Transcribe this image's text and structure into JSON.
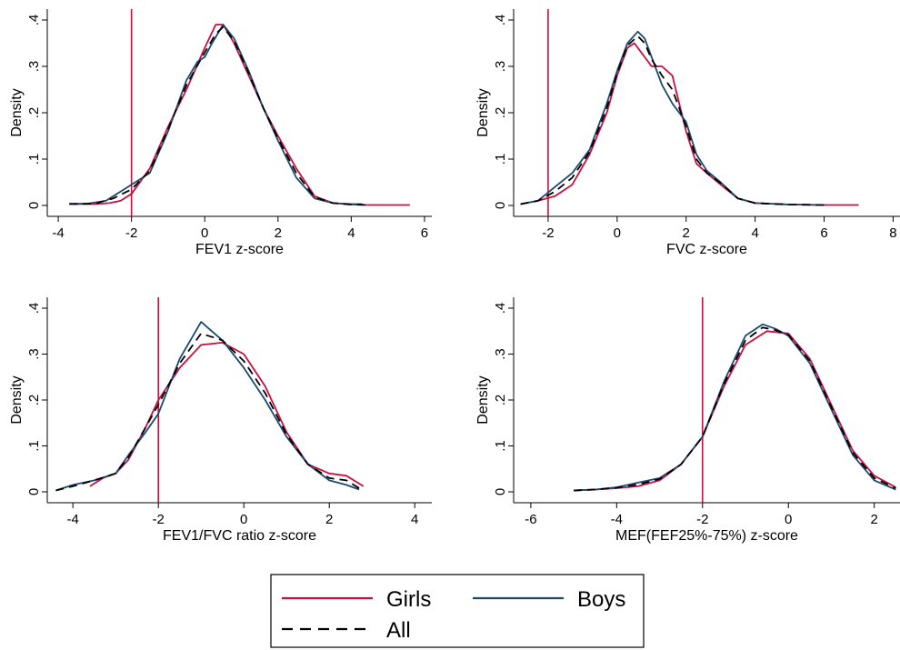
{
  "colors": {
    "girls": "#c8103e",
    "boys": "#1a4a6e",
    "all": "#000000",
    "refline": "#c8103e"
  },
  "legend": {
    "girls_label": "Girls",
    "boys_label": "Boys",
    "all_label": "All"
  },
  "chart_data": [
    {
      "type": "line",
      "xlabel": "FEV1 z-score",
      "ylabel": "Density",
      "xlim": [
        -4.3,
        6.2
      ],
      "ylim": [
        0,
        0.4
      ],
      "xticks": [
        -4,
        -2,
        0,
        2,
        4,
        6
      ],
      "yticks": [
        0,
        0.1,
        0.2,
        0.3,
        0.4
      ],
      "ytick_labels": [
        "0",
        ".1",
        ".2",
        ".3",
        ".4"
      ],
      "refline_x": -2,
      "series": [
        {
          "name": "Girls",
          "x": [
            -3.6,
            -3.0,
            -2.6,
            -2.3,
            -2.0,
            -1.5,
            -1.0,
            -0.5,
            0.0,
            0.3,
            0.5,
            0.8,
            1.2,
            1.6,
            2.0,
            2.5,
            3.0,
            3.5,
            4.0,
            4.5,
            5.0,
            5.6
          ],
          "y": [
            0.003,
            0.003,
            0.005,
            0.01,
            0.025,
            0.08,
            0.17,
            0.25,
            0.34,
            0.39,
            0.39,
            0.35,
            0.28,
            0.21,
            0.15,
            0.08,
            0.02,
            0.005,
            0.002,
            0.001,
            0.001,
            0.001
          ]
        },
        {
          "name": "Boys",
          "x": [
            -3.7,
            -3.2,
            -2.7,
            -2.3,
            -2.0,
            -1.5,
            -1.0,
            -0.5,
            -0.2,
            0.0,
            0.2,
            0.5,
            0.8,
            1.2,
            1.6,
            2.0,
            2.5,
            3.0,
            3.5,
            4.0,
            4.3
          ],
          "y": [
            0.004,
            0.004,
            0.01,
            0.03,
            0.045,
            0.07,
            0.16,
            0.27,
            0.31,
            0.32,
            0.35,
            0.39,
            0.36,
            0.29,
            0.21,
            0.14,
            0.06,
            0.015,
            0.005,
            0.003,
            0.003
          ]
        },
        {
          "name": "All",
          "x": [
            -3.7,
            -3.0,
            -2.5,
            -2.0,
            -1.5,
            -1.0,
            -0.5,
            0.0,
            0.3,
            0.5,
            0.8,
            1.2,
            1.6,
            2.0,
            2.5,
            3.0,
            3.5,
            4.0,
            4.5
          ],
          "y": [
            0.003,
            0.004,
            0.015,
            0.035,
            0.075,
            0.165,
            0.26,
            0.33,
            0.37,
            0.385,
            0.355,
            0.285,
            0.21,
            0.145,
            0.07,
            0.018,
            0.005,
            0.002,
            0.001
          ]
        }
      ]
    },
    {
      "type": "line",
      "xlabel": "FVC z-score",
      "ylabel": "Density",
      "xlim": [
        -3.0,
        8.2
      ],
      "ylim": [
        0,
        0.4
      ],
      "xticks": [
        -2,
        0,
        2,
        4,
        6,
        8
      ],
      "yticks": [
        0,
        0.1,
        0.2,
        0.3,
        0.4
      ],
      "ytick_labels": [
        "0",
        ".1",
        ".2",
        ".3",
        ".4"
      ],
      "refline_x": -2,
      "series": [
        {
          "name": "Girls",
          "x": [
            -2.8,
            -2.3,
            -1.8,
            -1.3,
            -0.8,
            -0.3,
            0.0,
            0.3,
            0.5,
            0.8,
            1.0,
            1.3,
            1.6,
            2.0,
            2.3,
            2.6,
            3.0,
            3.5,
            4.0,
            5.0,
            6.0,
            7.0
          ],
          "y": [
            0.003,
            0.01,
            0.02,
            0.045,
            0.11,
            0.2,
            0.28,
            0.34,
            0.35,
            0.32,
            0.3,
            0.3,
            0.28,
            0.16,
            0.09,
            0.07,
            0.045,
            0.015,
            0.005,
            0.002,
            0.001,
            0.001
          ]
        },
        {
          "name": "Boys",
          "x": [
            -2.8,
            -2.3,
            -1.8,
            -1.3,
            -0.8,
            -0.3,
            0.0,
            0.3,
            0.6,
            0.8,
            1.0,
            1.3,
            1.6,
            2.0,
            2.3,
            2.6,
            3.0,
            3.5,
            4.0,
            5.0,
            6.0
          ],
          "y": [
            0.003,
            0.01,
            0.04,
            0.07,
            0.12,
            0.22,
            0.29,
            0.35,
            0.375,
            0.36,
            0.32,
            0.26,
            0.22,
            0.18,
            0.11,
            0.075,
            0.05,
            0.015,
            0.005,
            0.002,
            0.001
          ]
        },
        {
          "name": "All",
          "x": [
            -2.8,
            -2.3,
            -1.8,
            -1.3,
            -0.8,
            -0.3,
            0.0,
            0.3,
            0.6,
            0.8,
            1.0,
            1.3,
            1.6,
            2.0,
            2.3,
            2.6,
            3.0,
            3.5,
            4.0,
            5.0,
            6.0
          ],
          "y": [
            0.003,
            0.01,
            0.03,
            0.06,
            0.115,
            0.21,
            0.285,
            0.345,
            0.365,
            0.35,
            0.315,
            0.28,
            0.25,
            0.17,
            0.1,
            0.07,
            0.048,
            0.015,
            0.005,
            0.002,
            0.001
          ]
        }
      ]
    },
    {
      "type": "line",
      "xlabel": "FEV1/FVC ratio z-score",
      "ylabel": "Density",
      "xlim": [
        -4.6,
        4.4
      ],
      "ylim": [
        0,
        0.4
      ],
      "xticks": [
        -4,
        -2,
        0,
        2,
        4
      ],
      "yticks": [
        0,
        0.1,
        0.2,
        0.3,
        0.4
      ],
      "ytick_labels": [
        "0",
        ".1",
        ".2",
        ".3",
        ".4"
      ],
      "refline_x": -2,
      "series": [
        {
          "name": "Girls",
          "x": [
            -3.6,
            -3.3,
            -3.0,
            -2.7,
            -2.3,
            -2.0,
            -1.5,
            -1.0,
            -0.5,
            0.0,
            0.5,
            1.0,
            1.5,
            2.0,
            2.4,
            2.8
          ],
          "y": [
            0.012,
            0.03,
            0.04,
            0.07,
            0.14,
            0.2,
            0.27,
            0.32,
            0.325,
            0.3,
            0.23,
            0.13,
            0.06,
            0.04,
            0.035,
            0.012
          ]
        },
        {
          "name": "Boys",
          "x": [
            -4.4,
            -4.0,
            -3.5,
            -3.0,
            -2.7,
            -2.3,
            -2.0,
            -1.5,
            -1.0,
            -0.5,
            0.0,
            0.5,
            1.0,
            1.5,
            2.0,
            2.4,
            2.7
          ],
          "y": [
            0.003,
            0.015,
            0.025,
            0.04,
            0.08,
            0.13,
            0.17,
            0.29,
            0.37,
            0.33,
            0.27,
            0.2,
            0.12,
            0.06,
            0.025,
            0.015,
            0.005
          ]
        },
        {
          "name": "All",
          "x": [
            -4.4,
            -4.0,
            -3.5,
            -3.0,
            -2.7,
            -2.3,
            -2.0,
            -1.5,
            -1.0,
            -0.5,
            0.0,
            0.5,
            1.0,
            1.5,
            2.0,
            2.4,
            2.7
          ],
          "y": [
            0.003,
            0.012,
            0.025,
            0.04,
            0.075,
            0.14,
            0.19,
            0.28,
            0.345,
            0.33,
            0.285,
            0.215,
            0.125,
            0.06,
            0.03,
            0.025,
            0.008
          ]
        }
      ]
    },
    {
      "type": "line",
      "xlabel": "MEF(FEF25%-75%) z-score",
      "ylabel": "Density",
      "xlim": [
        -6.4,
        2.6
      ],
      "ylim": [
        0,
        0.4
      ],
      "xticks": [
        -6,
        -4,
        -2,
        0,
        2
      ],
      "yticks": [
        0,
        0.1,
        0.2,
        0.3,
        0.4
      ],
      "ytick_labels": [
        "0",
        ".1",
        ".2",
        ".3",
        ".4"
      ],
      "refline_x": -2,
      "series": [
        {
          "name": "Girls",
          "x": [
            -5.0,
            -4.5,
            -4.0,
            -3.5,
            -3.0,
            -2.5,
            -2.0,
            -1.5,
            -1.0,
            -0.5,
            0.0,
            0.5,
            1.0,
            1.5,
            2.0,
            2.5
          ],
          "y": [
            0.003,
            0.005,
            0.008,
            0.012,
            0.025,
            0.06,
            0.12,
            0.23,
            0.32,
            0.35,
            0.345,
            0.29,
            0.19,
            0.09,
            0.035,
            0.01
          ]
        },
        {
          "name": "Boys",
          "x": [
            -5.0,
            -4.5,
            -4.0,
            -3.5,
            -3.0,
            -2.5,
            -2.0,
            -1.5,
            -1.0,
            -0.6,
            -0.3,
            0.0,
            0.5,
            1.0,
            1.5,
            2.0,
            2.5
          ],
          "y": [
            0.003,
            0.005,
            0.01,
            0.02,
            0.03,
            0.06,
            0.12,
            0.24,
            0.34,
            0.365,
            0.355,
            0.34,
            0.28,
            0.18,
            0.08,
            0.025,
            0.005
          ]
        },
        {
          "name": "All",
          "x": [
            -5.0,
            -4.5,
            -4.0,
            -3.5,
            -3.0,
            -2.5,
            -2.0,
            -1.5,
            -1.0,
            -0.6,
            -0.3,
            0.0,
            0.5,
            1.0,
            1.5,
            2.0,
            2.5
          ],
          "y": [
            0.003,
            0.005,
            0.009,
            0.016,
            0.028,
            0.06,
            0.12,
            0.235,
            0.33,
            0.358,
            0.352,
            0.342,
            0.285,
            0.185,
            0.085,
            0.03,
            0.008
          ]
        }
      ]
    }
  ]
}
